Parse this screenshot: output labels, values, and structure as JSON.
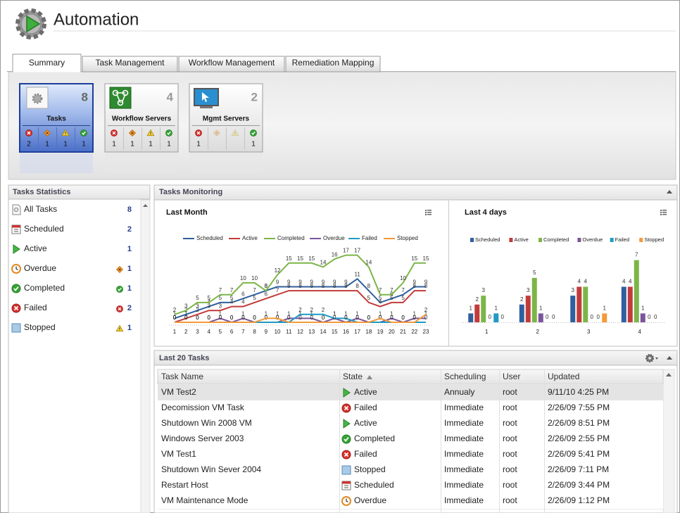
{
  "header": {
    "title": "Automation"
  },
  "tabs": [
    "Summary",
    "Task Management",
    "Workflow Management",
    "Remediation Mapping"
  ],
  "tiles": [
    {
      "name": "Tasks",
      "count": 8,
      "status_counts": [
        2,
        1,
        1,
        1
      ]
    },
    {
      "name": "Workflow Servers",
      "count": 4,
      "status_counts": [
        1,
        1,
        1,
        1
      ]
    },
    {
      "name": "Mgmt Servers",
      "count": 2,
      "status_counts": [
        1,
        null,
        null,
        1
      ]
    }
  ],
  "tasks_statistics": {
    "title": "Tasks Statistics",
    "items": [
      {
        "label": "All Tasks",
        "count": 8
      },
      {
        "label": "Scheduled",
        "count": 2
      },
      {
        "label": "Active",
        "count": 1
      },
      {
        "label": "Overdue",
        "count": 1
      },
      {
        "label": "Completed",
        "count": 1
      },
      {
        "label": "Failed",
        "count": 2
      },
      {
        "label": "Stopped",
        "count": 1
      }
    ]
  },
  "tasks_monitoring": {
    "title": "Tasks Monitoring"
  },
  "chart_data": [
    {
      "type": "line",
      "title": "Last Month",
      "categories": [
        1,
        2,
        3,
        4,
        5,
        6,
        7,
        8,
        9,
        10,
        11,
        12,
        13,
        14,
        15,
        16,
        17,
        18,
        19,
        20,
        21,
        22,
        23
      ],
      "ylim": [
        0,
        18
      ],
      "series": [
        {
          "name": "Scheduled",
          "color": "#2f5f9e",
          "values": [
            1,
            2,
            3,
            4,
            5,
            5,
            6,
            7,
            8,
            9,
            9,
            9,
            9,
            9,
            9,
            9,
            11,
            8,
            5,
            6,
            7,
            9,
            9
          ]
        },
        {
          "name": "Active",
          "color": "#c23b3b",
          "values": [
            0,
            1,
            2,
            3,
            3,
            4,
            4,
            5,
            6,
            7,
            8,
            8,
            8,
            8,
            8,
            8,
            8,
            5,
            4,
            5,
            5,
            8,
            8
          ]
        },
        {
          "name": "Completed",
          "color": "#7cb548",
          "values": [
            2,
            3,
            5,
            5,
            7,
            7,
            10,
            10,
            8,
            12,
            15,
            15,
            15,
            14,
            16,
            17,
            17,
            14,
            7,
            7,
            10,
            15,
            15
          ]
        },
        {
          "name": "Overdue",
          "color": "#7b559c",
          "values": [
            0,
            0,
            0,
            0,
            1,
            0,
            1,
            0,
            0,
            0,
            1,
            1,
            1,
            0,
            1,
            0,
            1,
            0,
            0,
            1,
            0,
            1,
            1
          ]
        },
        {
          "name": "Failed",
          "color": "#1e9bc4",
          "values": [
            0,
            0,
            0,
            0,
            0,
            0,
            0,
            0,
            0,
            0,
            0,
            2,
            2,
            2,
            1,
            1,
            0,
            0,
            0,
            0,
            0,
            0,
            0
          ]
        },
        {
          "name": "Stopped",
          "color": "#f39a3a",
          "values": [
            0,
            0,
            0,
            0,
            0,
            0,
            0,
            0,
            1,
            1,
            0,
            0,
            0,
            0,
            0,
            0,
            0,
            0,
            1,
            0,
            0,
            0,
            2
          ]
        }
      ]
    },
    {
      "type": "bar",
      "title": "Last 4 days",
      "categories": [
        1,
        2,
        3,
        4
      ],
      "ylim": [
        0,
        8
      ],
      "series": [
        {
          "name": "Scheduled",
          "color": "#2f5f9e",
          "values": [
            1,
            2,
            3,
            4
          ]
        },
        {
          "name": "Active",
          "color": "#c23b3b",
          "values": [
            2,
            3,
            4,
            4
          ]
        },
        {
          "name": "Completed",
          "color": "#7cb548",
          "values": [
            3,
            5,
            4,
            7
          ]
        },
        {
          "name": "Overdue",
          "color": "#7b559c",
          "values": [
            0,
            1,
            0,
            1
          ]
        },
        {
          "name": "Failed",
          "color": "#1e9bc4",
          "values": [
            1,
            0,
            0,
            0
          ]
        },
        {
          "name": "Stopped",
          "color": "#f39a3a",
          "values": [
            0,
            0,
            1,
            0
          ]
        }
      ]
    }
  ],
  "last_tasks": {
    "title": "Last 20 Tasks",
    "columns": [
      "Task Name",
      "State",
      "Scheduling",
      "User",
      "Updated"
    ],
    "rows": [
      [
        "VM Test2",
        "Active",
        "Annualy",
        "root",
        "9/11/10 4:25 PM"
      ],
      [
        "Decomission VM Task",
        "Failed",
        "Immediate",
        "root",
        "2/26/09 7:55 PM"
      ],
      [
        "Shutdown Win 2008 VM",
        "Active",
        "Immediate",
        "root",
        "2/26/09 8:51 PM"
      ],
      [
        "Windows Server 2003",
        "Completed",
        "Immediate",
        "root",
        "2/26/09 2:55 PM"
      ],
      [
        "VM Test1",
        "Failed",
        "Immediate",
        "root",
        "2/26/09 5:41 PM"
      ],
      [
        "Shutdown Win Sever 2004",
        "Stopped",
        "Immediate",
        "root",
        "2/26/09 7:11 PM"
      ],
      [
        "Restart Host",
        "Scheduled",
        "Immediate",
        "root",
        "2/26/09 3:44 PM"
      ],
      [
        "VM Maintenance Mode",
        "Overdue",
        "Immediate",
        "root",
        "2/26/09 1:12 PM"
      ]
    ]
  }
}
